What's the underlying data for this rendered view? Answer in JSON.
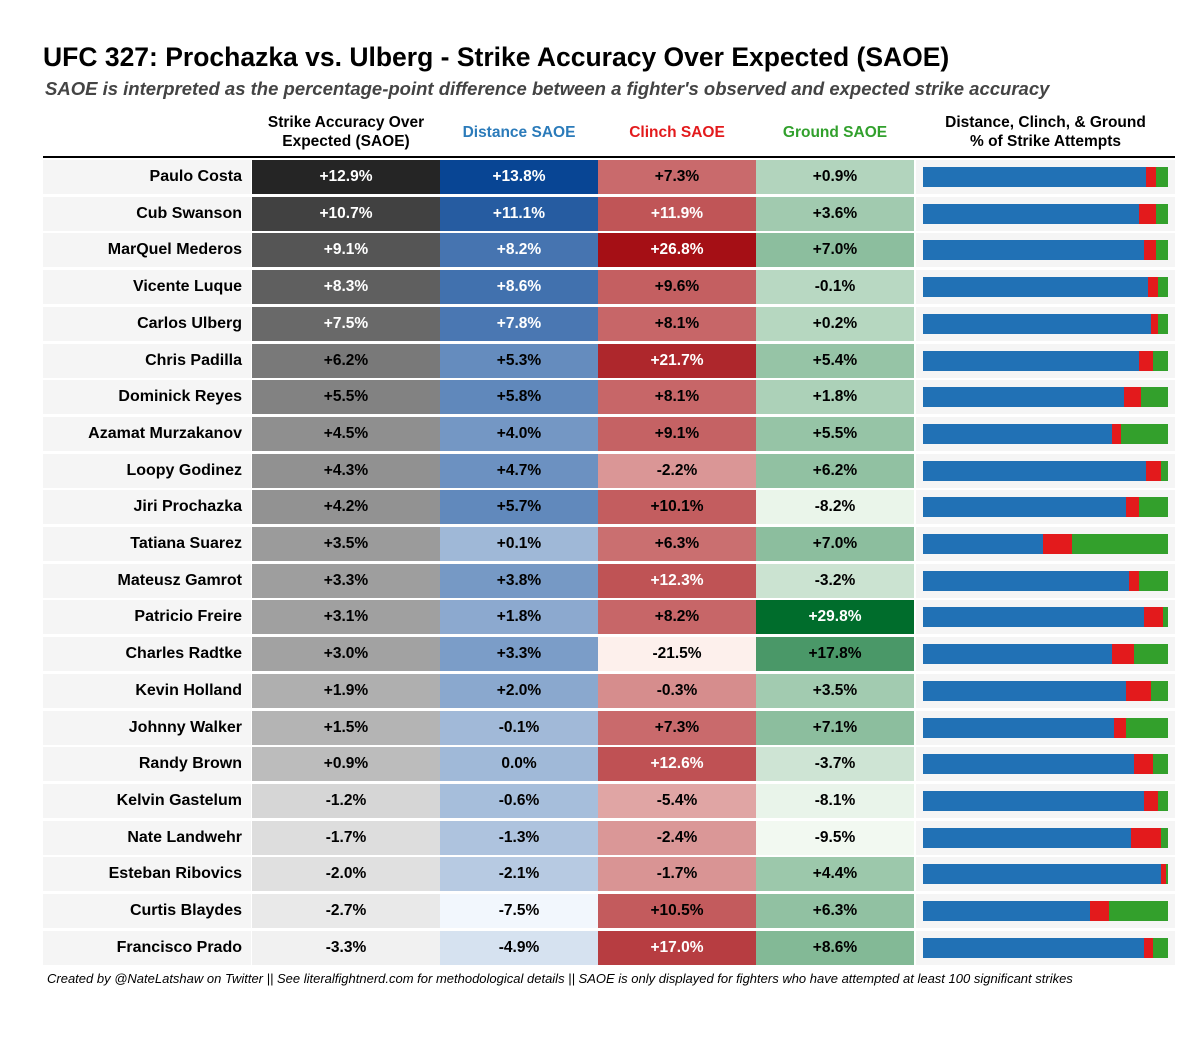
{
  "title": "UFC 327: Prochazka vs. Ulberg - Strike Accuracy Over Expected (SAOE)",
  "subtitle": "SAOE is interpreted as the percentage-point difference between a fighter's observed and expected strike accuracy",
  "footnote": "Created by @NateLatshaw on Twitter || See literalfightnerd.com for methodological details || SAOE is only displayed for fighters who have attempted at least 100 significant strikes",
  "colors": {
    "overall_header": "#000000",
    "distance_header": "#2b7bba",
    "clinch_header": "#e31a1c",
    "ground_header": "#31a02c",
    "bar_distance": "#2171b5",
    "bar_clinch": "#e31a1c",
    "bar_ground": "#33a02c",
    "row_background": "#f5f5f5"
  },
  "chart_data": {
    "type": "table",
    "title": "UFC 327: Prochazka vs. Ulberg - Strike Accuracy Over Expected (SAOE)",
    "columns": [
      "Strike Accuracy Over Expected (SAOE)",
      "Distance SAOE",
      "Clinch SAOE",
      "Ground SAOE",
      "Distance, Clinch, & Ground % of Strike Attempts"
    ],
    "units": "percentage points",
    "rows": [
      {
        "fighter": "Paulo Costa",
        "overall": 12.9,
        "distance": 13.8,
        "clinch": 7.3,
        "ground": 0.9,
        "overall_label": "+12.9%",
        "distance_label": "+13.8%",
        "clinch_label": "+7.3%",
        "ground_label": "+0.9%",
        "pct_distance": 91,
        "pct_clinch": 4,
        "pct_ground": 5
      },
      {
        "fighter": "Cub Swanson",
        "overall": 10.7,
        "distance": 11.1,
        "clinch": 11.9,
        "ground": 3.6,
        "overall_label": "+10.7%",
        "distance_label": "+11.1%",
        "clinch_label": "+11.9%",
        "ground_label": "+3.6%",
        "pct_distance": 88,
        "pct_clinch": 7,
        "pct_ground": 5
      },
      {
        "fighter": "MarQuel Mederos",
        "overall": 9.1,
        "distance": 8.2,
        "clinch": 26.8,
        "ground": 7.0,
        "overall_label": "+9.1%",
        "distance_label": "+8.2%",
        "clinch_label": "+26.8%",
        "ground_label": "+7.0%",
        "pct_distance": 90,
        "pct_clinch": 5,
        "pct_ground": 5
      },
      {
        "fighter": "Vicente Luque",
        "overall": 8.3,
        "distance": 8.6,
        "clinch": 9.6,
        "ground": -0.1,
        "overall_label": "+8.3%",
        "distance_label": "+8.6%",
        "clinch_label": "+9.6%",
        "ground_label": "-0.1%",
        "pct_distance": 92,
        "pct_clinch": 4,
        "pct_ground": 4
      },
      {
        "fighter": "Carlos Ulberg",
        "overall": 7.5,
        "distance": 7.8,
        "clinch": 8.1,
        "ground": 0.2,
        "overall_label": "+7.5%",
        "distance_label": "+7.8%",
        "clinch_label": "+8.1%",
        "ground_label": "+0.2%",
        "pct_distance": 93,
        "pct_clinch": 3,
        "pct_ground": 4
      },
      {
        "fighter": "Chris Padilla",
        "overall": 6.2,
        "distance": 5.3,
        "clinch": 21.7,
        "ground": 5.4,
        "overall_label": "+6.2%",
        "distance_label": "+5.3%",
        "clinch_label": "+21.7%",
        "ground_label": "+5.4%",
        "pct_distance": 88,
        "pct_clinch": 6,
        "pct_ground": 6
      },
      {
        "fighter": "Dominick Reyes",
        "overall": 5.5,
        "distance": 5.8,
        "clinch": 8.1,
        "ground": 1.8,
        "overall_label": "+5.5%",
        "distance_label": "+5.8%",
        "clinch_label": "+8.1%",
        "ground_label": "+1.8%",
        "pct_distance": 82,
        "pct_clinch": 7,
        "pct_ground": 11
      },
      {
        "fighter": "Azamat Murzakanov",
        "overall": 4.5,
        "distance": 4.0,
        "clinch": 9.1,
        "ground": 5.5,
        "overall_label": "+4.5%",
        "distance_label": "+4.0%",
        "clinch_label": "+9.1%",
        "ground_label": "+5.5%",
        "pct_distance": 77,
        "pct_clinch": 4,
        "pct_ground": 19
      },
      {
        "fighter": "Loopy Godinez",
        "overall": 4.3,
        "distance": 4.7,
        "clinch": -2.2,
        "ground": 6.2,
        "overall_label": "+4.3%",
        "distance_label": "+4.7%",
        "clinch_label": "-2.2%",
        "ground_label": "+6.2%",
        "pct_distance": 91,
        "pct_clinch": 6,
        "pct_ground": 3
      },
      {
        "fighter": "Jiri Prochazka",
        "overall": 4.2,
        "distance": 5.7,
        "clinch": 10.1,
        "ground": -8.2,
        "overall_label": "+4.2%",
        "distance_label": "+5.7%",
        "clinch_label": "+10.1%",
        "ground_label": "-8.2%",
        "pct_distance": 83,
        "pct_clinch": 5,
        "pct_ground": 12
      },
      {
        "fighter": "Tatiana Suarez",
        "overall": 3.5,
        "distance": 0.1,
        "clinch": 6.3,
        "ground": 7.0,
        "overall_label": "+3.5%",
        "distance_label": "+0.1%",
        "clinch_label": "+6.3%",
        "ground_label": "+7.0%",
        "pct_distance": 49,
        "pct_clinch": 12,
        "pct_ground": 39
      },
      {
        "fighter": "Mateusz Gamrot",
        "overall": 3.3,
        "distance": 3.8,
        "clinch": 12.3,
        "ground": -3.2,
        "overall_label": "+3.3%",
        "distance_label": "+3.8%",
        "clinch_label": "+12.3%",
        "ground_label": "-3.2%",
        "pct_distance": 84,
        "pct_clinch": 4,
        "pct_ground": 12
      },
      {
        "fighter": "Patricio Freire",
        "overall": 3.1,
        "distance": 1.8,
        "clinch": 8.2,
        "ground": 29.8,
        "overall_label": "+3.1%",
        "distance_label": "+1.8%",
        "clinch_label": "+8.2%",
        "ground_label": "+29.8%",
        "pct_distance": 90,
        "pct_clinch": 8,
        "pct_ground": 2
      },
      {
        "fighter": "Charles Radtke",
        "overall": 3.0,
        "distance": 3.3,
        "clinch": -21.5,
        "ground": 17.8,
        "overall_label": "+3.0%",
        "distance_label": "+3.3%",
        "clinch_label": "-21.5%",
        "ground_label": "+17.8%",
        "pct_distance": 77,
        "pct_clinch": 9,
        "pct_ground": 14
      },
      {
        "fighter": "Kevin Holland",
        "overall": 1.9,
        "distance": 2.0,
        "clinch": -0.3,
        "ground": 3.5,
        "overall_label": "+1.9%",
        "distance_label": "+2.0%",
        "clinch_label": "-0.3%",
        "ground_label": "+3.5%",
        "pct_distance": 83,
        "pct_clinch": 10,
        "pct_ground": 7
      },
      {
        "fighter": "Johnny Walker",
        "overall": 1.5,
        "distance": -0.1,
        "clinch": 7.3,
        "ground": 7.1,
        "overall_label": "+1.5%",
        "distance_label": "-0.1%",
        "clinch_label": "+7.3%",
        "ground_label": "+7.1%",
        "pct_distance": 78,
        "pct_clinch": 5,
        "pct_ground": 17
      },
      {
        "fighter": "Randy Brown",
        "overall": 0.9,
        "distance": 0.0,
        "clinch": 12.6,
        "ground": -3.7,
        "overall_label": "+0.9%",
        "distance_label": "0.0%",
        "clinch_label": "+12.6%",
        "ground_label": "-3.7%",
        "pct_distance": 86,
        "pct_clinch": 8,
        "pct_ground": 6
      },
      {
        "fighter": "Kelvin Gastelum",
        "overall": -1.2,
        "distance": -0.6,
        "clinch": -5.4,
        "ground": -8.1,
        "overall_label": "-1.2%",
        "distance_label": "-0.6%",
        "clinch_label": "-5.4%",
        "ground_label": "-8.1%",
        "pct_distance": 90,
        "pct_clinch": 6,
        "pct_ground": 4
      },
      {
        "fighter": "Nate Landwehr",
        "overall": -1.7,
        "distance": -1.3,
        "clinch": -2.4,
        "ground": -9.5,
        "overall_label": "-1.7%",
        "distance_label": "-1.3%",
        "clinch_label": "-2.4%",
        "ground_label": "-9.5%",
        "pct_distance": 85,
        "pct_clinch": 12,
        "pct_ground": 3
      },
      {
        "fighter": "Esteban Ribovics",
        "overall": -2.0,
        "distance": -2.1,
        "clinch": -1.7,
        "ground": 4.4,
        "overall_label": "-2.0%",
        "distance_label": "-2.1%",
        "clinch_label": "-1.7%",
        "ground_label": "+4.4%",
        "pct_distance": 97,
        "pct_clinch": 2,
        "pct_ground": 1
      },
      {
        "fighter": "Curtis Blaydes",
        "overall": -2.7,
        "distance": -7.5,
        "clinch": 10.5,
        "ground": 6.3,
        "overall_label": "-2.7%",
        "distance_label": "-7.5%",
        "clinch_label": "+10.5%",
        "ground_label": "+6.3%",
        "pct_distance": 68,
        "pct_clinch": 8,
        "pct_ground": 24
      },
      {
        "fighter": "Francisco Prado",
        "overall": -3.3,
        "distance": -4.9,
        "clinch": 17.0,
        "ground": 8.6,
        "overall_label": "-3.3%",
        "distance_label": "-4.9%",
        "clinch_label": "+17.0%",
        "ground_label": "+8.6%",
        "pct_distance": 90,
        "pct_clinch": 4,
        "pct_ground": 6
      }
    ]
  }
}
